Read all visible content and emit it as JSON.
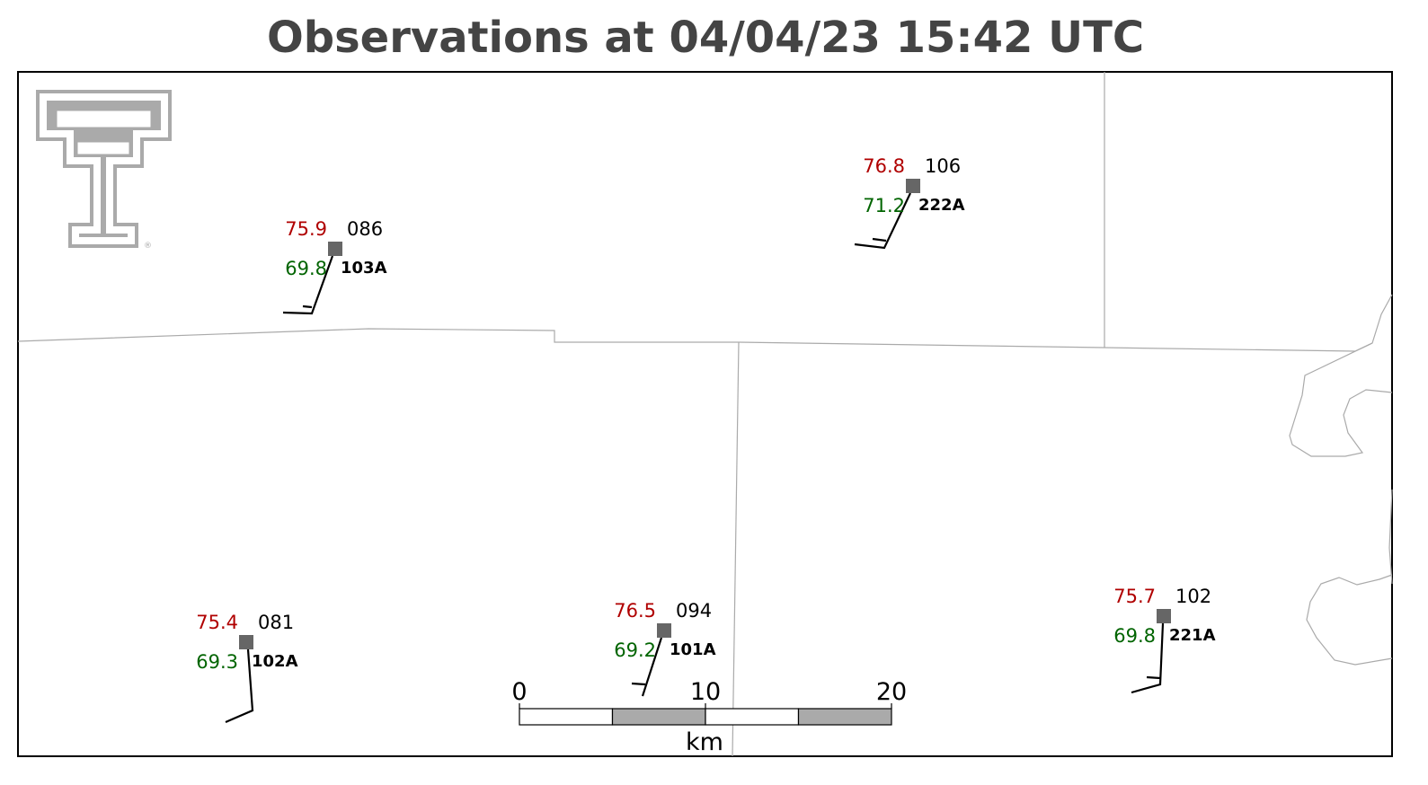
{
  "title": "Observations at 04/04/23 15:42 UTC",
  "stations": [
    {
      "id": "103A",
      "temperature": 75.9,
      "dewpoint": 69.8,
      "pressure": "086"
    },
    {
      "id": "222A",
      "temperature": 76.8,
      "dewpoint": 71.2,
      "pressure": "106"
    },
    {
      "id": "102A",
      "temperature": 75.4,
      "dewpoint": 69.3,
      "pressure": "081"
    },
    {
      "id": "101A",
      "temperature": 76.5,
      "dewpoint": 69.2,
      "pressure": "094"
    },
    {
      "id": "221A",
      "temperature": 75.7,
      "dewpoint": 69.8,
      "pressure": "102"
    }
  ],
  "scale_bar": {
    "ticks": [
      0,
      10,
      20
    ],
    "unit": "km"
  }
}
